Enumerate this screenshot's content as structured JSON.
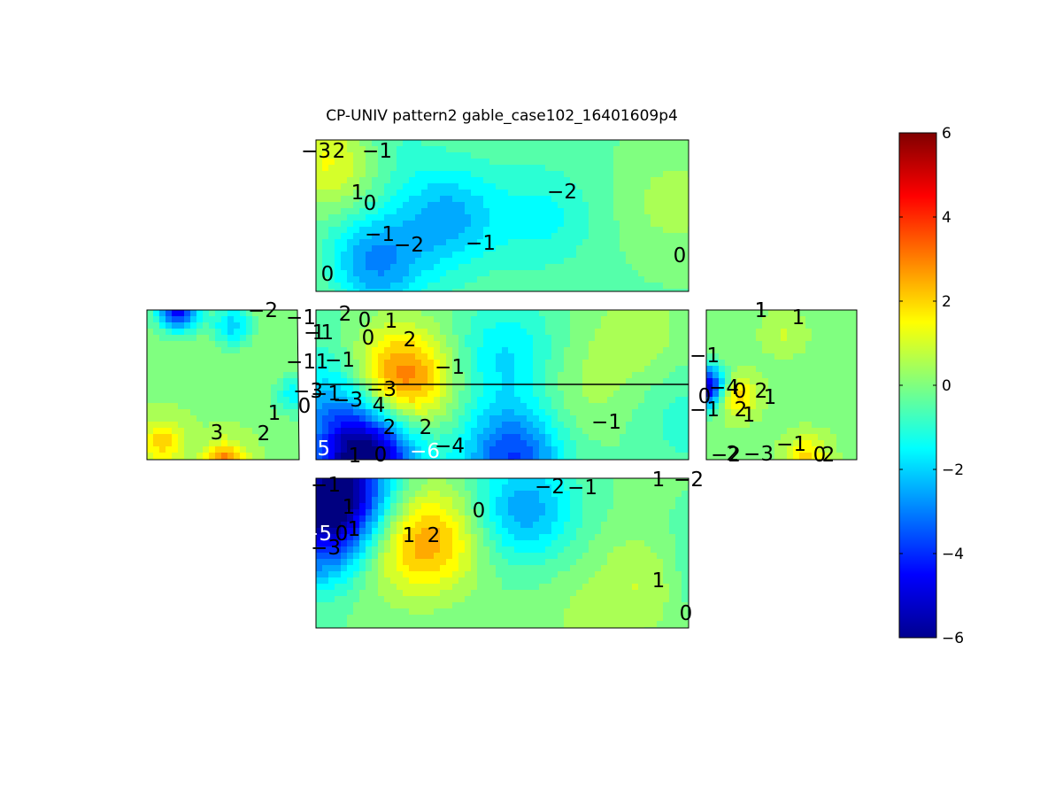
{
  "chart_data": {
    "type": "heatmap",
    "title": "CP-UNIV pattern2 gable_case102_16401609p4",
    "colormap": "jet",
    "clim": [
      -6,
      6
    ],
    "colorbar": {
      "position": "right",
      "ticks": [
        6,
        4,
        2,
        0,
        -2,
        -4,
        -6
      ],
      "tick_labels": [
        "6",
        "4",
        "2",
        "0",
        "−2",
        "−4",
        "−6"
      ]
    },
    "panels": [
      {
        "name": "top-roof",
        "contour_labels": [
          "−3",
          "2",
          "−1",
          "1",
          "0",
          "−1",
          "−2",
          "−1",
          "−2",
          "0",
          "0"
        ],
        "blobs": [
          {
            "u": 0.06,
            "v": 0.12,
            "val": 2.0
          },
          {
            "u": 0.14,
            "v": 0.05,
            "val": -1.5
          },
          {
            "u": 0.35,
            "v": 0.5,
            "val": -2.4
          },
          {
            "u": 0.15,
            "v": 0.8,
            "val": -3.0
          },
          {
            "u": 0.6,
            "v": 0.5,
            "val": -1.4
          },
          {
            "u": 0.95,
            "v": 0.4,
            "val": 0.5
          },
          {
            "u": 0.03,
            "v": 0.95,
            "val": 0.3
          }
        ],
        "base": -0.3
      },
      {
        "name": "left-gable",
        "contour_labels": [
          "−2",
          "−1",
          "−1",
          "−3",
          "0",
          "1",
          "2",
          "3"
        ],
        "blobs": [
          {
            "u": 0.2,
            "v": 0.0,
            "val": -4.5
          },
          {
            "u": 0.55,
            "v": 0.1,
            "val": -2.0
          },
          {
            "u": 0.5,
            "v": 1.0,
            "val": 3.4
          },
          {
            "u": 0.1,
            "v": 0.85,
            "val": 2.0
          },
          {
            "u": 0.95,
            "v": 0.55,
            "val": -1.5
          }
        ],
        "base": 0.2
      },
      {
        "name": "center-wall",
        "contour_labels": [
          "1",
          "2",
          "0",
          "1",
          "0",
          "2",
          "1",
          "−1",
          "−1",
          "−1",
          "−3",
          "−3",
          "4",
          "2",
          "2",
          "−4",
          "1",
          "0",
          "−6",
          "−5",
          "−1",
          "−1",
          "0",
          "−1",
          "−1"
        ],
        "blobs": [
          {
            "u": 0.22,
            "v": 0.45,
            "val": 3.5
          },
          {
            "u": 0.13,
            "v": 0.95,
            "val": -6.5
          },
          {
            "u": 0.52,
            "v": 0.95,
            "val": -3.8
          },
          {
            "u": 0.5,
            "v": 0.3,
            "val": -1.8
          },
          {
            "u": 0.05,
            "v": 0.55,
            "val": -2.0
          },
          {
            "u": 0.85,
            "v": 0.15,
            "val": 0.6
          },
          {
            "u": 0.98,
            "v": 0.7,
            "val": -1.0
          },
          {
            "u": 0.7,
            "v": 0.55,
            "val": 0.4
          }
        ],
        "base": -0.3
      },
      {
        "name": "right-gable",
        "contour_labels": [
          "1",
          "1",
          "−4",
          "0",
          "1",
          "2",
          "1",
          "2",
          "−2",
          "2",
          "−3",
          "−1",
          "0",
          "2",
          "1"
        ],
        "blobs": [
          {
            "u": 0.0,
            "v": 0.5,
            "val": -5.5
          },
          {
            "u": 0.18,
            "v": 0.55,
            "val": 2.4
          },
          {
            "u": 0.65,
            "v": 0.95,
            "val": 2.0
          },
          {
            "u": 0.5,
            "v": 0.15,
            "val": 0.8
          },
          {
            "u": 0.85,
            "v": 0.5,
            "val": 0.2
          }
        ],
        "base": 0.1
      },
      {
        "name": "bottom-roof",
        "contour_labels": [
          "−1",
          "1",
          "−5",
          "0",
          "1",
          "−3",
          "1",
          "2",
          "0",
          "−2",
          "−1",
          "1",
          "−2",
          "1",
          "0"
        ],
        "blobs": [
          {
            "u": 0.06,
            "v": 0.05,
            "val": -5.5
          },
          {
            "u": 0.03,
            "v": 0.4,
            "val": -4.0
          },
          {
            "u": 0.3,
            "v": 0.4,
            "val": 2.5
          },
          {
            "u": 0.55,
            "v": 0.2,
            "val": -2.6
          },
          {
            "u": 0.9,
            "v": 0.65,
            "val": 1.2
          },
          {
            "u": 1.0,
            "v": 0.6,
            "val": -1.5
          },
          {
            "u": 0.12,
            "v": 0.5,
            "val": 1.0
          },
          {
            "u": 0.7,
            "v": 0.9,
            "val": 0.3
          }
        ],
        "base": -0.2
      }
    ]
  }
}
